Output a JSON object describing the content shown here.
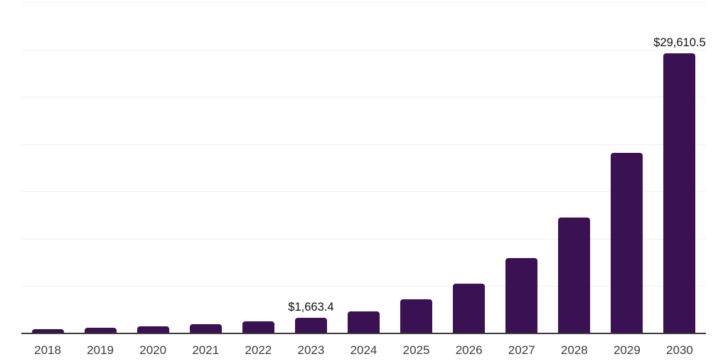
{
  "chart_data": {
    "type": "bar",
    "title": "",
    "xlabel": "",
    "ylabel": "",
    "categories": [
      "2018",
      "2019",
      "2020",
      "2021",
      "2022",
      "2023",
      "2024",
      "2025",
      "2026",
      "2027",
      "2028",
      "2029",
      "2030"
    ],
    "values": [
      450,
      600,
      750,
      975,
      1275,
      1663.4,
      2330,
      3590,
      5240,
      7940,
      12210,
      19110,
      29610.5
    ],
    "value_labels": [
      {
        "category": "2023",
        "text": "$1,663.4"
      },
      {
        "category": "2030",
        "text": "$29,610.5"
      }
    ],
    "ylim": [
      0,
      35000
    ],
    "gridline_step": 5000,
    "grid": true,
    "legend": "none",
    "y_axis_tick_labels_visible": false,
    "colors": {
      "bar": "#3a1152",
      "gridline": "#f0f0f0",
      "axis_line": "#3d3d3d",
      "tick_label": "#3c3c3c",
      "value_label": "#0f0f0f",
      "background": "#ffffff"
    }
  }
}
